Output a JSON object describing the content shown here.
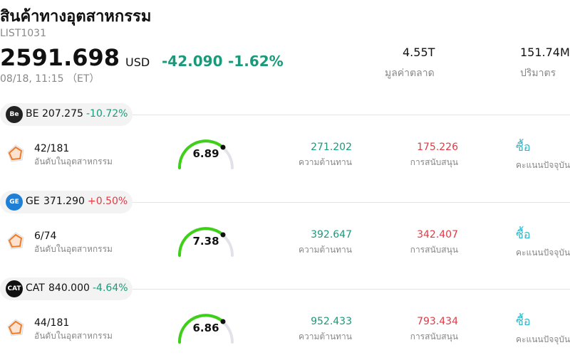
{
  "header": {
    "title": "สินค้าทางอุตสาหกรรม",
    "code": "LIST1031",
    "price": "2591.698",
    "currency": "USD",
    "change": "-42.090",
    "change_pct": "-1.62%",
    "time": "08/18, 11:15 （ET）",
    "market_cap": "4.55T",
    "market_cap_label": "มูลค่าตลาด",
    "volume": "151.74M",
    "volume_label": "ปริมาตร"
  },
  "stocks": [
    {
      "logo": "Be",
      "logo_color": "#222222",
      "symbol": "BE",
      "price": "207.275",
      "change": "-10.72%",
      "change_color": "#1a9a7a",
      "rank": "42/181",
      "rank_label": "อันดับในอุตสาหกรรม",
      "score": "6.89",
      "resistance": "271.202",
      "resistance_label": "ความต้านทาน",
      "support": "175.226",
      "support_label": "การสนับสนุน",
      "action": "ซื้อ",
      "action_label": "คะแนนปัจจุบัน"
    },
    {
      "logo": "GE",
      "logo_color": "#1e7fd6",
      "symbol": "GE",
      "price": "371.290",
      "change": "+0.50%",
      "change_color": "#e03a45",
      "rank": "6/74",
      "rank_label": "อันดับในอุตสาหกรรม",
      "score": "7.38",
      "resistance": "392.647",
      "resistance_label": "ความต้านทาน",
      "support": "342.407",
      "support_label": "การสนับสนุน",
      "action": "ซื้อ",
      "action_label": "คะแนนปัจจุบัน"
    },
    {
      "logo": "CAT",
      "logo_color": "#111111",
      "symbol": "CAT",
      "price": "840.000",
      "change": "-4.64%",
      "change_color": "#1a9a7a",
      "rank": "44/181",
      "rank_label": "อันดับในอุตสาหกรรม",
      "score": "6.86",
      "resistance": "952.433",
      "resistance_label": "ความต้านทาน",
      "support": "793.434",
      "support_label": "การสนับสนุน",
      "action": "ซื้อ",
      "action_label": "คะแนนปัจจุบัน"
    }
  ]
}
